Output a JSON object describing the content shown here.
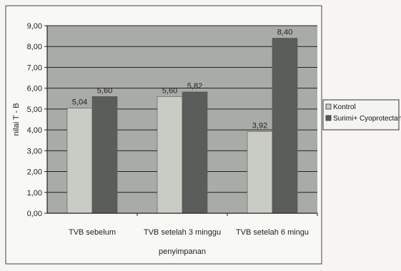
{
  "chart_data": {
    "type": "bar",
    "title": "",
    "xlabel": "penyimpanan",
    "ylabel": "nilai T - B",
    "categories": [
      "TVB sebelum",
      "TVB setelah 3 minggu",
      "TVB setelah 6 mingu"
    ],
    "series": [
      {
        "name": "Kontrol",
        "values": [
          5.04,
          5.6,
          3.92
        ],
        "labels": [
          "5,04",
          "5,60",
          "3,92"
        ],
        "color": "#c9ccc4"
      },
      {
        "name": "Surimi+ Cyoprotectan",
        "values": [
          5.6,
          5.82,
          8.4
        ],
        "labels": [
          "5,60",
          "5,82",
          "8,40"
        ],
        "color": "#5a5d5a"
      }
    ],
    "ylim": [
      0,
      9
    ],
    "yticks": [
      0,
      1,
      2,
      3,
      4,
      5,
      6,
      7,
      8,
      9
    ],
    "ytick_labels": [
      "0,00",
      "1,00",
      "2,00",
      "3,00",
      "4,00",
      "5,00",
      "6,00",
      "7,00",
      "8,00",
      "9,00"
    ],
    "grid": true,
    "legend_position": "right",
    "colors": {
      "plot_background": "#a9aba6",
      "gridline": "#222222"
    }
  }
}
